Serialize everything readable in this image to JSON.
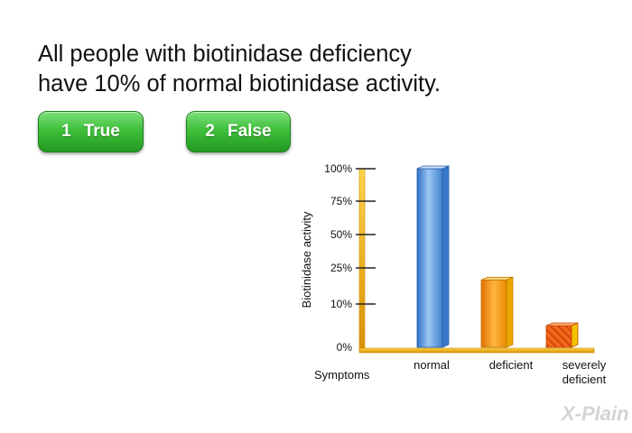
{
  "question": {
    "line1": "All people with biotinidase deficiency",
    "line2": "have 10% of normal biotinidase activity."
  },
  "answers": [
    {
      "number": "1",
      "label": "True"
    },
    {
      "number": "2",
      "label": "False"
    }
  ],
  "colors": {
    "button_green": "#3fbf3b",
    "axis_gold": "#e8a800",
    "bar_normal": "#5b9be0",
    "bar_deficient": "#f29a12",
    "bar_severe": "#ef5a10"
  },
  "chart_data": {
    "type": "bar",
    "ylabel": "Biotinidase activity",
    "xlabel": "Symptoms",
    "categories": [
      "normal",
      "deficient",
      "severely deficient"
    ],
    "category_lines": [
      [
        "normal"
      ],
      [
        "deficient"
      ],
      [
        "severely",
        "deficient"
      ]
    ],
    "values": [
      100,
      20,
      5
    ],
    "yticks": [
      "0%",
      "10%",
      "25%",
      "50%",
      "75%",
      "100%"
    ],
    "grid": false,
    "legend": "none"
  },
  "logo": {
    "text": "X-Plain",
    "icon": "x-plain-logo"
  }
}
